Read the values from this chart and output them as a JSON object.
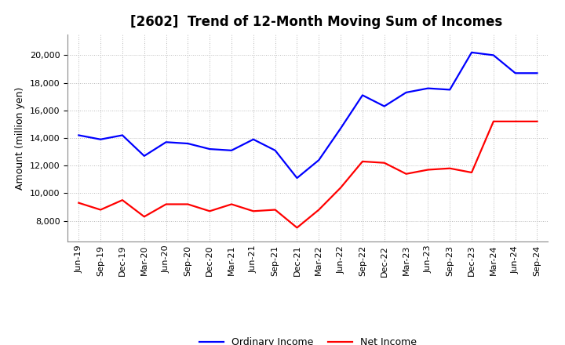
{
  "title": "[2602]  Trend of 12-Month Moving Sum of Incomes",
  "ylabel": "Amount (million yen)",
  "x_labels": [
    "Jun-19",
    "Sep-19",
    "Dec-19",
    "Mar-20",
    "Jun-20",
    "Sep-20",
    "Dec-20",
    "Mar-21",
    "Jun-21",
    "Sep-21",
    "Dec-21",
    "Mar-22",
    "Jun-22",
    "Sep-22",
    "Dec-22",
    "Mar-23",
    "Jun-23",
    "Sep-23",
    "Dec-23",
    "Mar-24",
    "Jun-24",
    "Sep-24"
  ],
  "ordinary_income": [
    14200,
    13900,
    14200,
    12700,
    13700,
    13600,
    13200,
    13100,
    13900,
    13100,
    11100,
    12400,
    14700,
    17100,
    16300,
    17300,
    17600,
    17500,
    20200,
    20000,
    18700,
    18700
  ],
  "net_income": [
    9300,
    8800,
    9500,
    8300,
    9200,
    9200,
    8700,
    9200,
    8700,
    8800,
    7500,
    8800,
    10400,
    12300,
    12200,
    11400,
    11700,
    11800,
    11500,
    15200,
    15200,
    15200
  ],
  "ordinary_color": "#0000ff",
  "net_color": "#ff0000",
  "ylim_min": 6500,
  "ylim_max": 21500,
  "yticks": [
    8000,
    10000,
    12000,
    14000,
    16000,
    18000,
    20000
  ],
  "bg_color": "#ffffff",
  "plot_bg_color": "#ffffff",
  "grid_color": "#bbbbbb",
  "line_width": 1.6,
  "title_fontsize": 12,
  "axis_label_fontsize": 9,
  "tick_fontsize": 8,
  "legend_fontsize": 9
}
